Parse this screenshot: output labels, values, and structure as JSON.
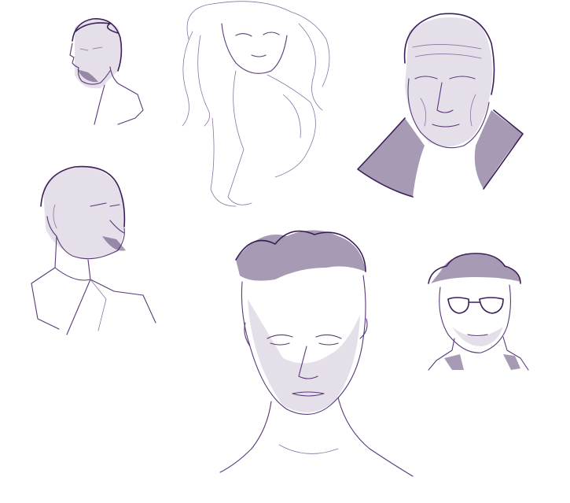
{
  "sketch": {
    "ink": "#4a2a66",
    "paper": "#ffffff",
    "portraits": [
      {
        "id": "bearded-man-profile"
      },
      {
        "id": "woman-long-hair"
      },
      {
        "id": "old-man-collar"
      },
      {
        "id": "bald-man-collared-shirt"
      },
      {
        "id": "young-man-quiff"
      },
      {
        "id": "man-hat-glasses"
      }
    ]
  }
}
